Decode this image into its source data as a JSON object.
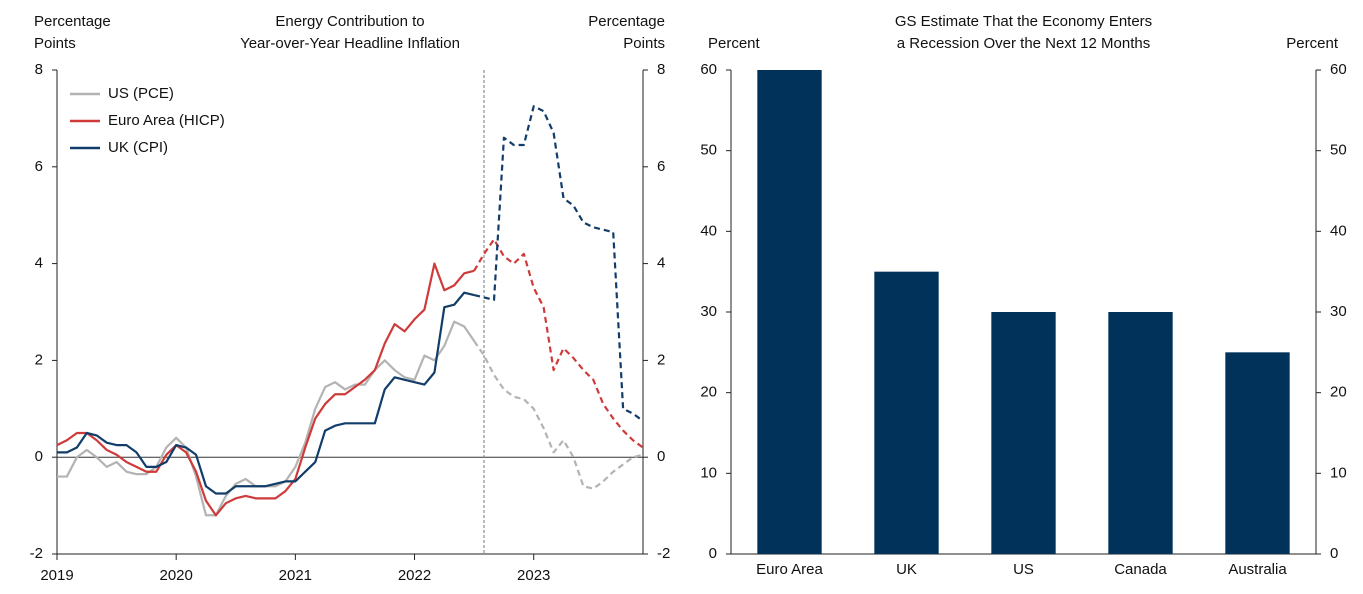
{
  "chart_data": [
    {
      "type": "line",
      "title": [
        "Energy Contribution to",
        "Year-over-Year Headline Inflation"
      ],
      "y_label": [
        "Percentage",
        "Points"
      ],
      "y2_label": [
        "Percentage",
        "Points"
      ],
      "x": [
        2019,
        2019.083,
        2019.167,
        2019.25,
        2019.333,
        2019.417,
        2019.5,
        2019.583,
        2019.667,
        2019.75,
        2019.833,
        2019.917,
        2020,
        2020.083,
        2020.167,
        2020.25,
        2020.333,
        2020.417,
        2020.5,
        2020.583,
        2020.667,
        2020.75,
        2020.833,
        2020.917,
        2021,
        2021.083,
        2021.167,
        2021.25,
        2021.333,
        2021.417,
        2021.5,
        2021.583,
        2021.667,
        2021.75,
        2021.833,
        2021.917,
        2022,
        2022.083,
        2022.167,
        2022.25,
        2022.333,
        2022.417,
        2022.5,
        2022.583,
        2022.667,
        2022.75,
        2022.833,
        2022.917,
        2023,
        2023.083,
        2023.167,
        2023.25,
        2023.333,
        2023.417,
        2023.5,
        2023.583,
        2023.667,
        2023.75,
        2023.833,
        2023.917
      ],
      "xlim": [
        2019,
        2023.917
      ],
      "xticks": [
        2019,
        2020,
        2021,
        2022,
        2023
      ],
      "ylim": [
        -2,
        8
      ],
      "yticks": [
        -2,
        0,
        2,
        4,
        6,
        8
      ],
      "y2lim": [
        -2,
        8
      ],
      "y2ticks": [
        -2,
        0,
        2,
        4,
        6,
        8
      ],
      "vline": 2022.583,
      "legend": "upper left",
      "series": [
        {
          "name": "US (PCE)",
          "color": "#b3b3b3",
          "values": [
            -0.4,
            -0.4,
            0.0,
            0.15,
            0.0,
            -0.2,
            -0.1,
            -0.3,
            -0.35,
            -0.35,
            -0.2,
            0.2,
            0.4,
            0.2,
            -0.4,
            -1.2,
            -1.2,
            -0.8,
            -0.55,
            -0.45,
            -0.6,
            -0.6,
            -0.6,
            -0.5,
            -0.2,
            0.3,
            1.0,
            1.45,
            1.55,
            1.4,
            1.5,
            1.5,
            1.8,
            2.0,
            1.8,
            1.65,
            1.6,
            2.1,
            2.0,
            2.3,
            2.8,
            2.7,
            2.4,
            2.1,
            1.7,
            1.4,
            1.25,
            1.2,
            1.0,
            0.6,
            0.1,
            0.35,
            0.0,
            -0.6,
            -0.65,
            -0.5,
            -0.3,
            -0.15,
            0.0,
            0.05
          ]
        },
        {
          "name": "Euro Area (HICP)",
          "color": "#cf3a3a",
          "values": [
            0.25,
            0.35,
            0.5,
            0.5,
            0.35,
            0.15,
            0.05,
            -0.1,
            -0.2,
            -0.3,
            -0.3,
            0.05,
            0.25,
            0.1,
            -0.3,
            -0.9,
            -1.2,
            -0.95,
            -0.85,
            -0.8,
            -0.85,
            -0.85,
            -0.85,
            -0.7,
            -0.45,
            0.2,
            0.8,
            1.1,
            1.3,
            1.3,
            1.45,
            1.6,
            1.8,
            2.35,
            2.75,
            2.6,
            2.85,
            3.05,
            4.0,
            3.45,
            3.55,
            3.8,
            3.85,
            4.2,
            4.5,
            4.15,
            4.0,
            4.2,
            3.5,
            3.1,
            1.8,
            2.25,
            2.05,
            1.8,
            1.6,
            1.1,
            0.8,
            0.55,
            0.35,
            0.2
          ]
        },
        {
          "name": "UK (CPI)",
          "color": "#123d6a",
          "values": [
            0.1,
            0.1,
            0.2,
            0.5,
            0.45,
            0.3,
            0.25,
            0.25,
            0.1,
            -0.2,
            -0.2,
            -0.1,
            0.25,
            0.2,
            0.05,
            -0.6,
            -0.75,
            -0.75,
            -0.6,
            -0.6,
            -0.6,
            -0.6,
            -0.55,
            -0.5,
            -0.5,
            -0.3,
            -0.1,
            0.55,
            0.65,
            0.7,
            0.7,
            0.7,
            0.7,
            1.4,
            1.65,
            1.6,
            1.55,
            1.5,
            1.75,
            3.1,
            3.15,
            3.4,
            3.35,
            3.3,
            3.25,
            6.6,
            6.45,
            6.45,
            7.25,
            7.15,
            6.7,
            5.35,
            5.2,
            4.85,
            4.75,
            4.7,
            4.65,
            1.0,
            0.9,
            0.75
          ]
        }
      ]
    },
    {
      "type": "bar",
      "title": [
        "GS Estimate That the Economy Enters",
        "a Recession Over the Next 12 Months"
      ],
      "y_label": [
        "Percent"
      ],
      "y2_label": [
        "Percent"
      ],
      "categories": [
        "Euro Area",
        "UK",
        "US",
        "Canada",
        "Australia"
      ],
      "values": [
        60,
        35,
        30,
        30,
        25
      ],
      "color": "#00325a",
      "ylim": [
        0,
        60
      ],
      "yticks": [
        0,
        10,
        20,
        30,
        40,
        50,
        60
      ],
      "y2lim": [
        0,
        60
      ],
      "y2ticks": [
        0,
        10,
        20,
        30,
        40,
        50,
        60
      ]
    }
  ]
}
